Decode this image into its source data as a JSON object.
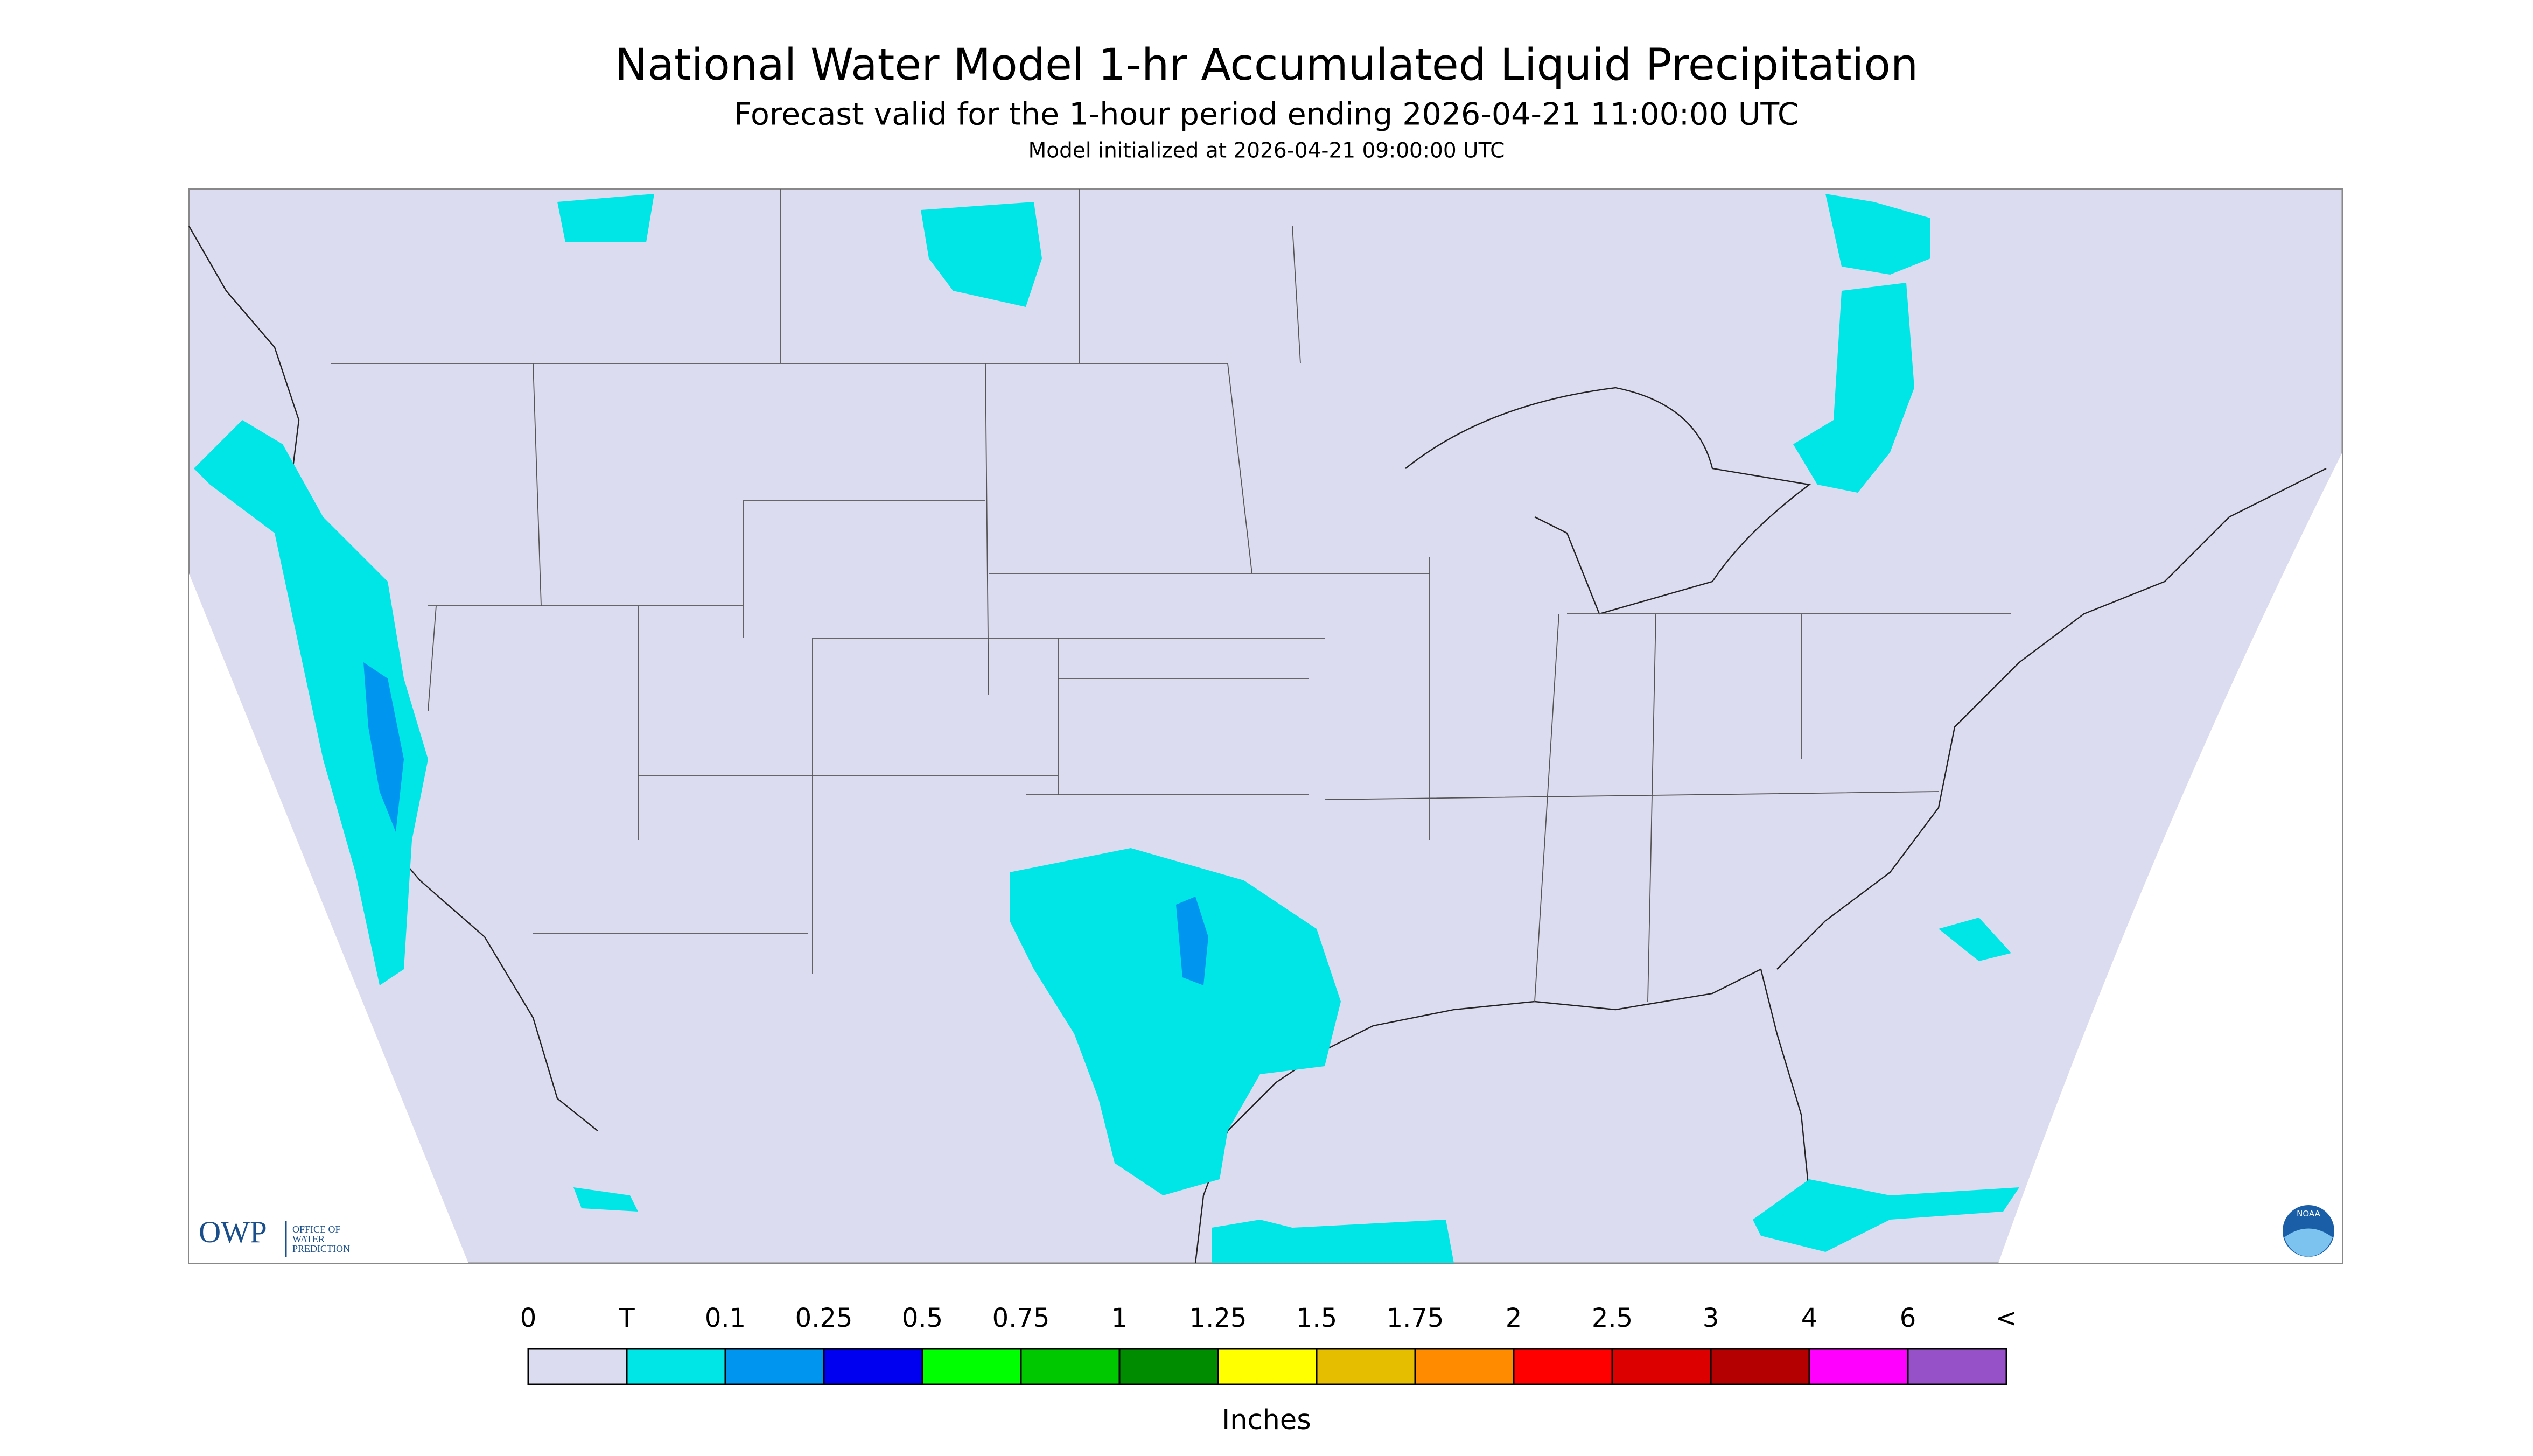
{
  "header": {
    "title": "National Water Model 1-hr Accumulated Liquid Precipitation",
    "subtitle": "Forecast valid for the 1-hour period ending 2026-04-21 11:00:00 UTC",
    "initialized": "Model initialized at 2026-04-21 09:00:00 UTC"
  },
  "legend": {
    "labels": [
      "0",
      "T",
      "0.1",
      "0.25",
      "0.5",
      "0.75",
      "1",
      "1.25",
      "1.5",
      "1.75",
      "2",
      "2.5",
      "3",
      "4",
      "6",
      "<"
    ],
    "colors": [
      "#dcdcf0",
      "#00e6e6",
      "#0096f0",
      "#0000f0",
      "#00ff00",
      "#00c800",
      "#008c00",
      "#ffff00",
      "#e6be00",
      "#ff8c00",
      "#ff0000",
      "#dc0000",
      "#b40000",
      "#ff00ff",
      "#9650c8"
    ],
    "unit": "Inches"
  },
  "logo": {
    "abbr": "OWP",
    "lines": [
      "OFFICE OF",
      "WATER",
      "PREDICTION"
    ]
  },
  "badge": "NOAA"
}
